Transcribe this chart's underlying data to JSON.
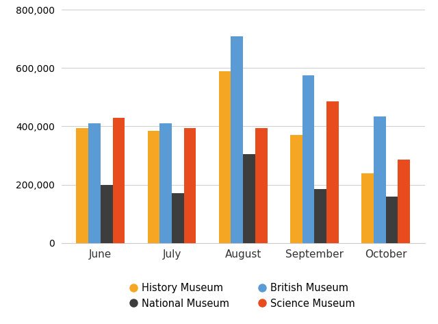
{
  "months": [
    "June",
    "July",
    "August",
    "September",
    "October"
  ],
  "series_order": [
    "History Museum",
    "British Museum",
    "National Museum",
    "Science Museum"
  ],
  "series": {
    "History Museum": [
      395000,
      385000,
      590000,
      370000,
      240000
    ],
    "British Museum": [
      410000,
      410000,
      710000,
      575000,
      435000
    ],
    "National Museum": [
      200000,
      170000,
      305000,
      185000,
      160000
    ],
    "Science Museum": [
      430000,
      395000,
      395000,
      485000,
      285000
    ]
  },
  "colors": {
    "History Museum": "#F5A623",
    "British Museum": "#5B9BD5",
    "National Museum": "#3D3D3D",
    "Science Museum": "#E84C1E"
  },
  "ylim": [
    0,
    800000
  ],
  "yticks": [
    0,
    200000,
    400000,
    600000,
    800000
  ],
  "legend_order": [
    "History Museum",
    "National Museum",
    "British Museum",
    "Science Museum"
  ],
  "background_color": "#ffffff",
  "grid_color": "#d0d0d0",
  "bar_width": 0.17,
  "figsize": [
    6.4,
    4.73
  ],
  "dpi": 100
}
